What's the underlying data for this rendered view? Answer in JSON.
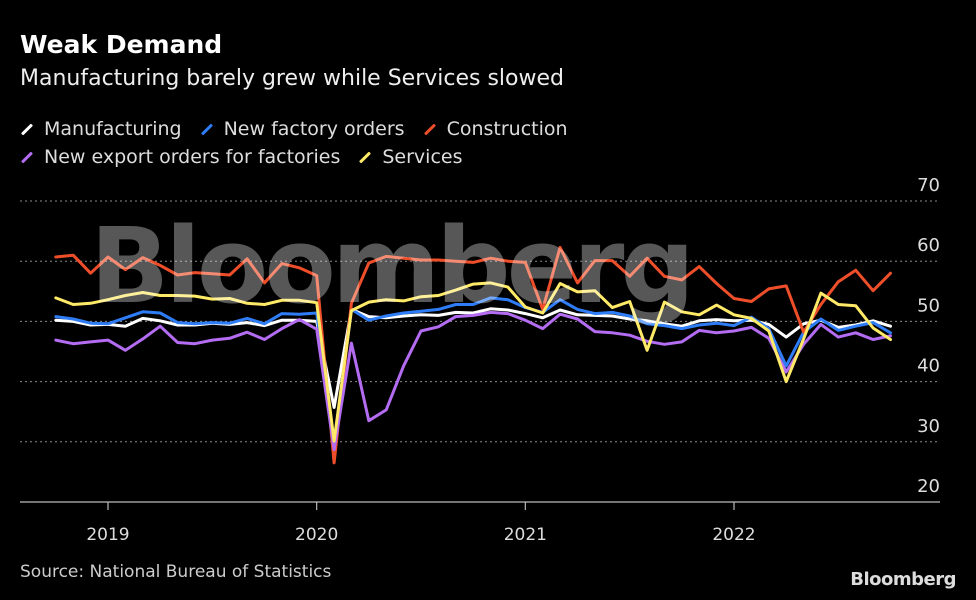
{
  "header": {
    "title": "Weak Demand",
    "subtitle": "Manufacturing barely grew while Services slowed"
  },
  "footer": {
    "source": "Source: National Bureau of Statistics",
    "brand": "Bloomberg"
  },
  "watermark": "Bloomberg",
  "chart_data": {
    "type": "line",
    "title": "Weak Demand",
    "subtitle": "Manufacturing barely grew while Services slowed",
    "xlabel": "",
    "ylabel": "",
    "ylim": [
      20,
      70
    ],
    "yticks": [
      20,
      30,
      40,
      50,
      60,
      70
    ],
    "x_tick_labels": [
      "2019",
      "2020",
      "2021",
      "2022"
    ],
    "grid": true,
    "legend_position": "top-left",
    "x": [
      "2018-10",
      "2018-11",
      "2018-12",
      "2019-01",
      "2019-02",
      "2019-03",
      "2019-04",
      "2019-05",
      "2019-06",
      "2019-07",
      "2019-08",
      "2019-09",
      "2019-10",
      "2019-11",
      "2019-12",
      "2020-01",
      "2020-02",
      "2020-03",
      "2020-04",
      "2020-05",
      "2020-06",
      "2020-07",
      "2020-08",
      "2020-09",
      "2020-10",
      "2020-11",
      "2020-12",
      "2021-01",
      "2021-02",
      "2021-03",
      "2021-04",
      "2021-05",
      "2021-06",
      "2021-07",
      "2021-08",
      "2021-09",
      "2021-10",
      "2021-11",
      "2021-12",
      "2022-01",
      "2022-02",
      "2022-03",
      "2022-04",
      "2022-05",
      "2022-06",
      "2022-07",
      "2022-08",
      "2022-09",
      "2022-10"
    ],
    "series": [
      {
        "name": "Manufacturing",
        "color": "#ffffff",
        "values": [
          50.2,
          50.0,
          49.4,
          49.5,
          49.2,
          50.5,
          50.1,
          49.4,
          49.4,
          49.7,
          49.5,
          49.8,
          49.3,
          50.2,
          50.2,
          50.0,
          35.7,
          52.0,
          50.8,
          50.6,
          50.9,
          51.1,
          51.0,
          51.5,
          51.4,
          52.1,
          51.9,
          51.3,
          50.6,
          51.9,
          51.1,
          51.0,
          50.9,
          50.4,
          50.1,
          49.6,
          49.2,
          50.1,
          50.3,
          50.1,
          50.2,
          49.5,
          47.4,
          49.6,
          50.2,
          49.0,
          49.4,
          50.1,
          49.2
        ]
      },
      {
        "name": "New factory orders",
        "color": "#2f7df6",
        "values": [
          50.8,
          50.4,
          49.7,
          49.6,
          50.6,
          51.6,
          51.4,
          49.8,
          49.6,
          49.8,
          49.7,
          50.5,
          49.6,
          51.3,
          51.2,
          51.4,
          29.3,
          52.0,
          50.2,
          50.9,
          51.4,
          51.7,
          52.0,
          52.8,
          52.8,
          53.9,
          53.6,
          52.3,
          51.5,
          53.6,
          52.0,
          51.3,
          51.5,
          50.9,
          49.6,
          49.3,
          48.8,
          49.4,
          49.7,
          49.3,
          50.7,
          48.8,
          42.6,
          48.2,
          50.4,
          48.5,
          49.2,
          49.8,
          48.1
        ]
      },
      {
        "name": "Construction",
        "color": "#ee4f2a",
        "values": [
          60.7,
          61.0,
          58.0,
          60.7,
          58.6,
          60.6,
          59.3,
          57.7,
          58.1,
          57.9,
          57.7,
          60.4,
          56.4,
          59.6,
          58.9,
          57.6,
          26.5,
          53.0,
          59.7,
          60.8,
          60.5,
          60.2,
          60.2,
          60.0,
          59.8,
          60.5,
          60.0,
          59.8,
          52.0,
          62.3,
          56.4,
          60.1,
          60.1,
          57.5,
          60.5,
          57.5,
          56.9,
          59.1,
          56.3,
          53.8,
          53.3,
          55.4,
          55.9,
          48.2,
          52.8,
          56.6,
          58.5,
          55.1,
          58.0
        ]
      },
      {
        "name": "New export orders for factories",
        "color": "#b36cf2",
        "values": [
          46.9,
          46.3,
          46.6,
          46.9,
          45.2,
          47.1,
          49.2,
          46.5,
          46.3,
          46.9,
          47.2,
          48.2,
          47.0,
          48.8,
          50.3,
          48.7,
          28.7,
          46.4,
          33.5,
          35.3,
          42.6,
          48.4,
          49.1,
          50.8,
          51.0,
          51.5,
          51.3,
          50.2,
          48.8,
          51.2,
          50.4,
          48.3,
          48.1,
          47.7,
          46.7,
          46.2,
          46.6,
          48.5,
          48.1,
          48.4,
          49.0,
          47.2,
          41.6,
          46.2,
          49.5,
          47.4,
          48.1,
          47.0,
          47.6
        ]
      },
      {
        "name": "Services",
        "color": "#ffea68",
        "values": [
          53.9,
          52.8,
          53.0,
          53.6,
          54.3,
          54.8,
          54.3,
          54.3,
          54.2,
          53.7,
          53.8,
          53.0,
          52.8,
          53.5,
          53.5,
          53.1,
          30.1,
          51.8,
          53.2,
          53.6,
          53.4,
          54.1,
          54.3,
          55.2,
          56.2,
          56.4,
          55.7,
          52.4,
          51.4,
          56.3,
          54.9,
          55.1,
          52.3,
          53.3,
          45.2,
          53.2,
          51.6,
          51.1,
          52.7,
          51.1,
          50.5,
          48.4,
          40.0,
          47.1,
          54.7,
          52.8,
          52.6,
          48.9,
          47.0
        ]
      }
    ]
  }
}
